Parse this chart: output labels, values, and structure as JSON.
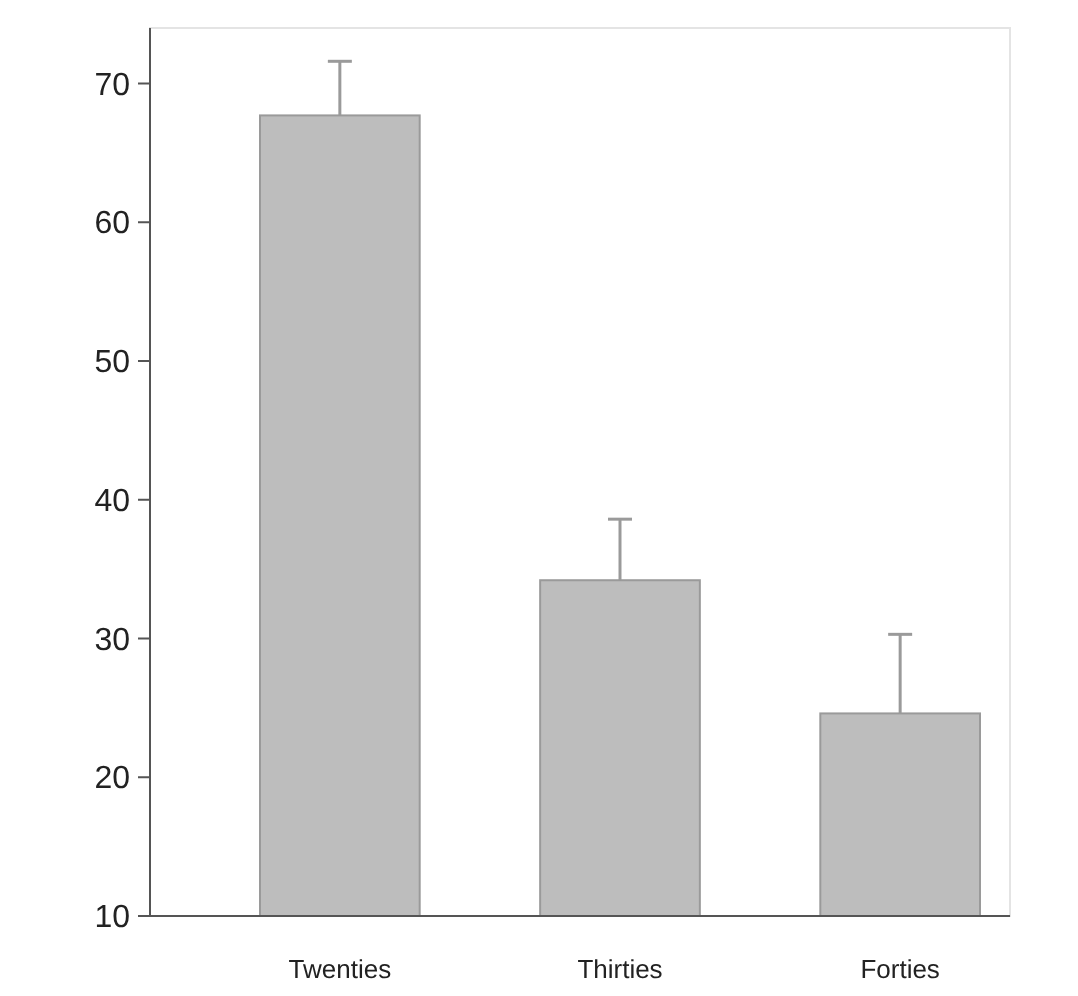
{
  "chart_data": {
    "type": "bar",
    "categories": [
      "Twenties",
      "Thirties",
      "Forties"
    ],
    "values": [
      67.7,
      34.2,
      24.6
    ],
    "errors": [
      [
        67.7,
        71.6
      ],
      [
        34.2,
        38.6
      ],
      [
        24.6,
        30.3
      ]
    ],
    "color": "#bdbdbd",
    "ylim": [
      10,
      74
    ],
    "yticks": [
      10,
      20,
      30,
      40,
      50,
      60,
      70
    ],
    "grid": false
  }
}
